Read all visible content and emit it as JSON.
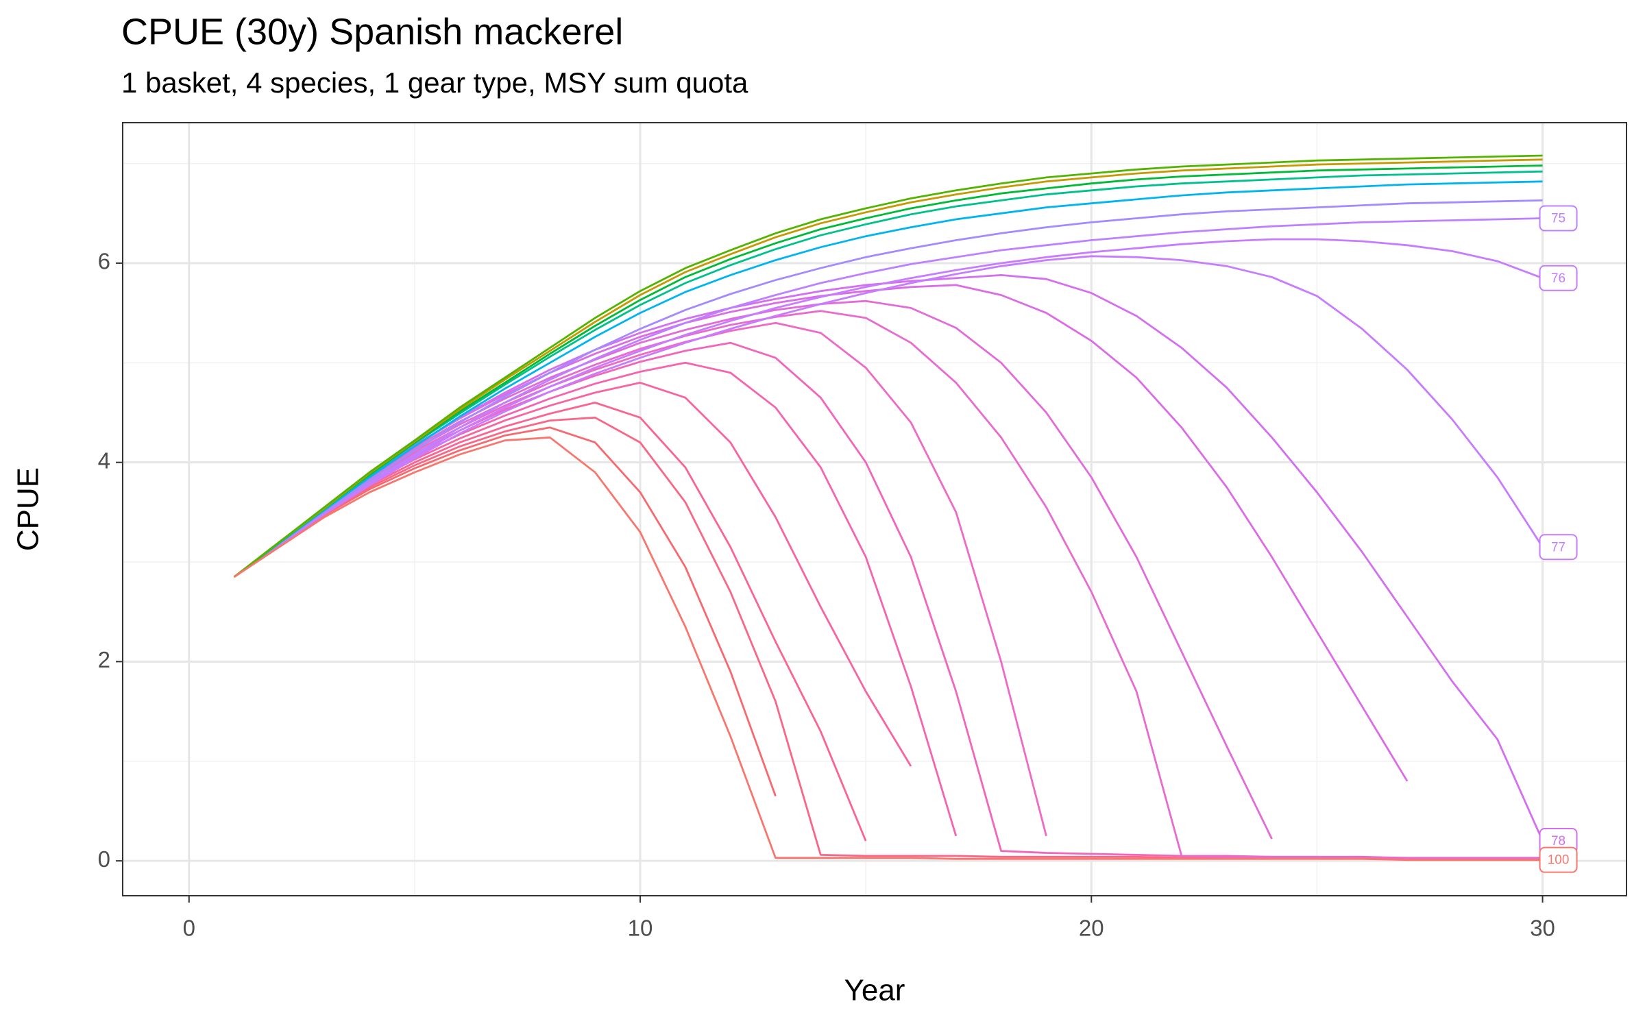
{
  "chart_data": {
    "type": "line",
    "title": "CPUE (30y) Spanish mackerel",
    "subtitle": "1 basket, 4 species, 1 gear type, MSY sum quota",
    "x_label": "Year",
    "y_label": "CPUE",
    "x": [
      1,
      2,
      3,
      4,
      5,
      6,
      7,
      8,
      9,
      10,
      11,
      12,
      13,
      14,
      15,
      16,
      17,
      18,
      19,
      20,
      21,
      22,
      23,
      24,
      25,
      26,
      27,
      28,
      29,
      30
    ],
    "xlim": [
      -1.47,
      31.86
    ],
    "ylim": [
      -0.35,
      7.41
    ],
    "xticks": [
      0,
      10,
      20,
      30
    ],
    "yticks": [
      0,
      2,
      4,
      6
    ],
    "x_minor_ticks": [
      5,
      15,
      25
    ],
    "y_minor_ticks": [
      1,
      3,
      5,
      7
    ],
    "grid": true,
    "series": [
      {
        "color": "#F8696F",
        "values": [
          2.85,
          3.16,
          3.47,
          3.73,
          3.94,
          4.12,
          4.27,
          4.35,
          4.2,
          3.7,
          2.95,
          1.9,
          0.65,
          null,
          null,
          null,
          null,
          null,
          null,
          null,
          null,
          null,
          null,
          null,
          null,
          null,
          null,
          null,
          null,
          null
        ]
      },
      {
        "color": "#FA6686",
        "values": [
          2.85,
          3.16,
          3.48,
          3.75,
          3.97,
          4.16,
          4.31,
          4.42,
          4.45,
          4.2,
          3.6,
          2.7,
          1.6,
          0.06,
          0.05,
          0.05,
          0.05,
          0.04,
          0.04,
          0.04,
          0.04,
          0.03,
          0.03,
          0.03,
          0.03,
          0.03,
          0.02,
          0.02,
          0.02,
          0.02
        ]
      },
      {
        "color": "#FA6492",
        "values": [
          2.85,
          3.17,
          3.49,
          3.77,
          4.0,
          4.2,
          4.36,
          4.49,
          4.6,
          4.45,
          3.95,
          3.15,
          2.2,
          1.3,
          0.2,
          null,
          null,
          null,
          null,
          null,
          null,
          null,
          null,
          null,
          null,
          null,
          null,
          null,
          null,
          null
        ]
      },
      {
        "color": "#F8649F",
        "values": [
          2.85,
          3.17,
          3.5,
          3.79,
          4.03,
          4.24,
          4.42,
          4.57,
          4.7,
          4.8,
          4.65,
          4.2,
          3.45,
          2.55,
          1.7,
          0.95,
          null,
          null,
          null,
          null,
          null,
          null,
          null,
          null,
          null,
          null,
          null,
          null,
          null,
          null
        ]
      },
      {
        "color": "#F564AE",
        "values": [
          2.85,
          3.18,
          3.51,
          3.81,
          4.06,
          4.28,
          4.47,
          4.64,
          4.79,
          4.91,
          5.0,
          4.9,
          4.55,
          3.95,
          3.05,
          1.75,
          0.25,
          null,
          null,
          null,
          null,
          null,
          null,
          null,
          null,
          null,
          null,
          null,
          null,
          null
        ]
      },
      {
        "color": "#F166BA",
        "values": [
          2.85,
          3.18,
          3.52,
          3.83,
          4.09,
          4.32,
          4.53,
          4.71,
          4.87,
          5.01,
          5.12,
          5.2,
          5.05,
          4.65,
          4.0,
          3.05,
          1.7,
          0.1,
          0.08,
          0.07,
          0.06,
          0.05,
          0.05,
          0.04,
          0.04,
          0.04,
          0.03,
          0.03,
          0.03,
          0.03
        ]
      },
      {
        "color": "#EE6AC4",
        "values": [
          2.85,
          3.18,
          3.52,
          3.84,
          4.11,
          4.35,
          4.57,
          4.76,
          4.93,
          5.08,
          5.21,
          5.32,
          5.4,
          5.3,
          4.95,
          4.4,
          3.5,
          2.0,
          0.25,
          null,
          null,
          null,
          null,
          null,
          null,
          null,
          null,
          null,
          null,
          null
        ]
      },
      {
        "color": "#E86BCE",
        "values": [
          2.85,
          3.18,
          3.53,
          3.85,
          4.13,
          4.38,
          4.6,
          4.8,
          4.98,
          5.14,
          5.27,
          5.38,
          5.46,
          5.52,
          5.45,
          5.2,
          4.8,
          4.25,
          3.55,
          2.7,
          1.7,
          0.05,
          0.04,
          0.04,
          0.04,
          0.03,
          0.03,
          0.03,
          0.03,
          0.03
        ]
      },
      {
        "color": "#E36BD8",
        "values": [
          2.85,
          3.18,
          3.53,
          3.86,
          4.15,
          4.41,
          4.64,
          4.85,
          5.03,
          5.2,
          5.33,
          5.44,
          5.53,
          5.59,
          5.62,
          5.55,
          5.35,
          5.0,
          4.5,
          3.85,
          3.05,
          2.1,
          1.15,
          0.22,
          null,
          null,
          null,
          null,
          null,
          null
        ]
      },
      {
        "color": "#DC6BE6",
        "values": [
          2.85,
          3.18,
          3.54,
          3.87,
          4.17,
          4.44,
          4.68,
          4.9,
          5.09,
          5.26,
          5.4,
          5.51,
          5.6,
          5.67,
          5.72,
          5.76,
          5.78,
          5.68,
          5.5,
          5.22,
          4.85,
          4.35,
          3.75,
          3.05,
          2.3,
          1.55,
          0.8,
          null,
          null,
          null
        ]
      },
      {
        "name": "78",
        "color": "#D36FF0",
        "values": [
          2.85,
          3.17,
          3.52,
          3.86,
          4.17,
          4.45,
          4.7,
          4.93,
          5.13,
          5.3,
          5.44,
          5.55,
          5.64,
          5.72,
          5.78,
          5.82,
          5.85,
          5.88,
          5.84,
          5.7,
          5.47,
          5.15,
          4.75,
          4.25,
          3.7,
          3.1,
          2.45,
          1.8,
          1.22,
          0.2
        ]
      },
      {
        "name": "77",
        "color": "#C77CFF",
        "values": [
          2.85,
          3.17,
          3.48,
          3.77,
          4.04,
          4.29,
          4.51,
          4.71,
          4.89,
          5.05,
          5.2,
          5.34,
          5.47,
          5.59,
          5.7,
          5.8,
          5.89,
          5.97,
          6.03,
          6.07,
          6.06,
          6.03,
          5.97,
          5.86,
          5.67,
          5.34,
          4.93,
          4.43,
          3.85,
          3.15
        ]
      },
      {
        "name": "76",
        "color": "#C77CFF",
        "values": [
          2.85,
          3.18,
          3.49,
          3.79,
          4.06,
          4.32,
          4.55,
          4.76,
          4.95,
          5.12,
          5.28,
          5.42,
          5.55,
          5.66,
          5.76,
          5.85,
          5.93,
          6.0,
          6.06,
          6.11,
          6.15,
          6.19,
          6.22,
          6.24,
          6.24,
          6.22,
          6.18,
          6.12,
          6.02,
          5.85
        ]
      },
      {
        "name": "75",
        "color": "#BD81FF",
        "values": [
          2.85,
          3.18,
          3.5,
          3.8,
          4.08,
          4.35,
          4.6,
          4.83,
          5.04,
          5.23,
          5.4,
          5.55,
          5.68,
          5.8,
          5.9,
          5.99,
          6.06,
          6.13,
          6.18,
          6.23,
          6.27,
          6.31,
          6.34,
          6.37,
          6.39,
          6.41,
          6.42,
          6.43,
          6.44,
          6.45
        ]
      },
      {
        "color": "#A58AFF",
        "values": [
          2.85,
          3.18,
          3.51,
          3.82,
          4.12,
          4.4,
          4.66,
          4.9,
          5.13,
          5.34,
          5.53,
          5.69,
          5.83,
          5.95,
          6.06,
          6.15,
          6.23,
          6.3,
          6.36,
          6.41,
          6.45,
          6.49,
          6.52,
          6.54,
          6.56,
          6.58,
          6.6,
          6.61,
          6.62,
          6.63
        ]
      },
      {
        "color": "#00B4F0",
        "values": [
          2.85,
          3.19,
          3.52,
          3.85,
          4.16,
          4.46,
          4.74,
          5.0,
          5.26,
          5.5,
          5.71,
          5.88,
          6.03,
          6.16,
          6.27,
          6.36,
          6.44,
          6.5,
          6.56,
          6.6,
          6.64,
          6.68,
          6.71,
          6.73,
          6.75,
          6.77,
          6.79,
          6.8,
          6.81,
          6.82
        ]
      },
      {
        "color": "#00C08B",
        "values": [
          2.85,
          3.19,
          3.53,
          3.87,
          4.19,
          4.49,
          4.78,
          5.06,
          5.33,
          5.58,
          5.8,
          5.98,
          6.14,
          6.28,
          6.39,
          6.49,
          6.57,
          6.63,
          6.69,
          6.73,
          6.77,
          6.8,
          6.82,
          6.84,
          6.86,
          6.88,
          6.89,
          6.9,
          6.91,
          6.92
        ]
      },
      {
        "color": "#00BA38",
        "values": [
          2.85,
          3.2,
          3.54,
          3.88,
          4.2,
          4.51,
          4.8,
          5.09,
          5.37,
          5.63,
          5.86,
          6.04,
          6.2,
          6.34,
          6.45,
          6.55,
          6.63,
          6.7,
          6.75,
          6.8,
          6.84,
          6.87,
          6.89,
          6.91,
          6.93,
          6.94,
          6.95,
          6.96,
          6.97,
          6.98
        ]
      },
      {
        "color": "#C49A00",
        "values": [
          2.85,
          3.2,
          3.54,
          3.89,
          4.21,
          4.53,
          4.83,
          5.12,
          5.41,
          5.68,
          5.91,
          6.09,
          6.26,
          6.4,
          6.51,
          6.61,
          6.69,
          6.76,
          6.82,
          6.86,
          6.9,
          6.93,
          6.95,
          6.97,
          6.99,
          7.0,
          7.01,
          7.02,
          7.03,
          7.04
        ]
      },
      {
        "color": "#53B400",
        "values": [
          2.85,
          3.2,
          3.55,
          3.9,
          4.22,
          4.55,
          4.85,
          5.15,
          5.45,
          5.72,
          5.95,
          6.13,
          6.3,
          6.44,
          6.55,
          6.65,
          6.73,
          6.8,
          6.86,
          6.9,
          6.94,
          6.97,
          6.99,
          7.01,
          7.03,
          7.04,
          7.05,
          7.06,
          7.07,
          7.08
        ]
      },
      {
        "name": "100",
        "color": "#F8766D",
        "values": [
          2.85,
          3.15,
          3.45,
          3.7,
          3.9,
          4.08,
          4.22,
          4.25,
          3.9,
          3.3,
          2.35,
          1.25,
          0.03,
          0.03,
          0.03,
          0.03,
          0.02,
          0.02,
          0.02,
          0.02,
          0.02,
          0.02,
          0.02,
          0.02,
          0.02,
          0.02,
          0.01,
          0.01,
          0.01,
          0.01
        ]
      }
    ]
  }
}
